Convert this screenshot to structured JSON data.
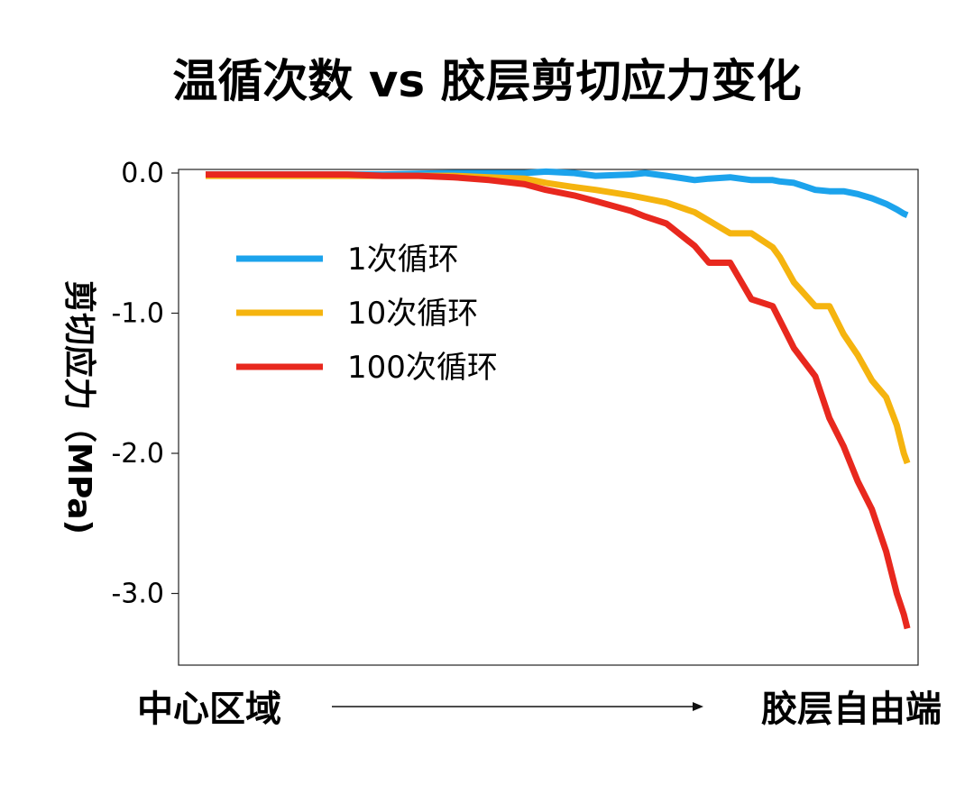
{
  "chart_data": {
    "type": "line",
    "title": "温循次数 vs 胶层剪切应力变化",
    "ylabel": "剪切应力（MPa)",
    "xlabel_left": "中心区域",
    "xlabel_right": "胶层自由端",
    "ylim": [
      -3.5,
      0.05
    ],
    "yticks": [
      0.0,
      -1.0,
      -2.0,
      -3.0
    ],
    "ytick_labels": [
      "0.0",
      "-1.0",
      "-2.0",
      "-3.0"
    ],
    "legend_position": "upper-left",
    "x": [
      0,
      0.05,
      0.1,
      0.15,
      0.2,
      0.25,
      0.3,
      0.35,
      0.4,
      0.45,
      0.48,
      0.52,
      0.55,
      0.6,
      0.62,
      0.65,
      0.69,
      0.71,
      0.74,
      0.77,
      0.8,
      0.81,
      0.83,
      0.86,
      0.88,
      0.9,
      0.92,
      0.94,
      0.96,
      0.975,
      0.985,
      0.99
    ],
    "series": [
      {
        "name": "1次循环",
        "color": "#1ca3ec",
        "values": [
          -0.01,
          -0.01,
          -0.01,
          -0.01,
          -0.01,
          -0.01,
          -0.005,
          0.0,
          0.0,
          0.0,
          0.01,
          0.0,
          -0.02,
          -0.01,
          0.0,
          -0.02,
          -0.05,
          -0.04,
          -0.03,
          -0.05,
          -0.05,
          -0.06,
          -0.07,
          -0.12,
          -0.13,
          -0.13,
          -0.15,
          -0.18,
          -0.22,
          -0.26,
          -0.29,
          -0.3
        ]
      },
      {
        "name": "10次循环",
        "color": "#f5b40f",
        "values": [
          -0.02,
          -0.02,
          -0.02,
          -0.02,
          -0.02,
          -0.02,
          -0.02,
          -0.02,
          -0.03,
          -0.04,
          -0.07,
          -0.1,
          -0.12,
          -0.16,
          -0.18,
          -0.21,
          -0.28,
          -0.34,
          -0.43,
          -0.43,
          -0.53,
          -0.6,
          -0.78,
          -0.95,
          -0.95,
          -1.15,
          -1.3,
          -1.48,
          -1.6,
          -1.8,
          -2.0,
          -2.07
        ]
      },
      {
        "name": "100次循环",
        "color": "#e8281e",
        "values": [
          -0.01,
          -0.01,
          -0.01,
          -0.01,
          -0.01,
          -0.02,
          -0.02,
          -0.03,
          -0.05,
          -0.08,
          -0.12,
          -0.16,
          -0.2,
          -0.27,
          -0.31,
          -0.36,
          -0.52,
          -0.64,
          -0.64,
          -0.9,
          -0.95,
          -1.05,
          -1.25,
          -1.45,
          -1.75,
          -1.95,
          -2.2,
          -2.4,
          -2.7,
          -3.0,
          -3.15,
          -3.25
        ]
      }
    ]
  }
}
